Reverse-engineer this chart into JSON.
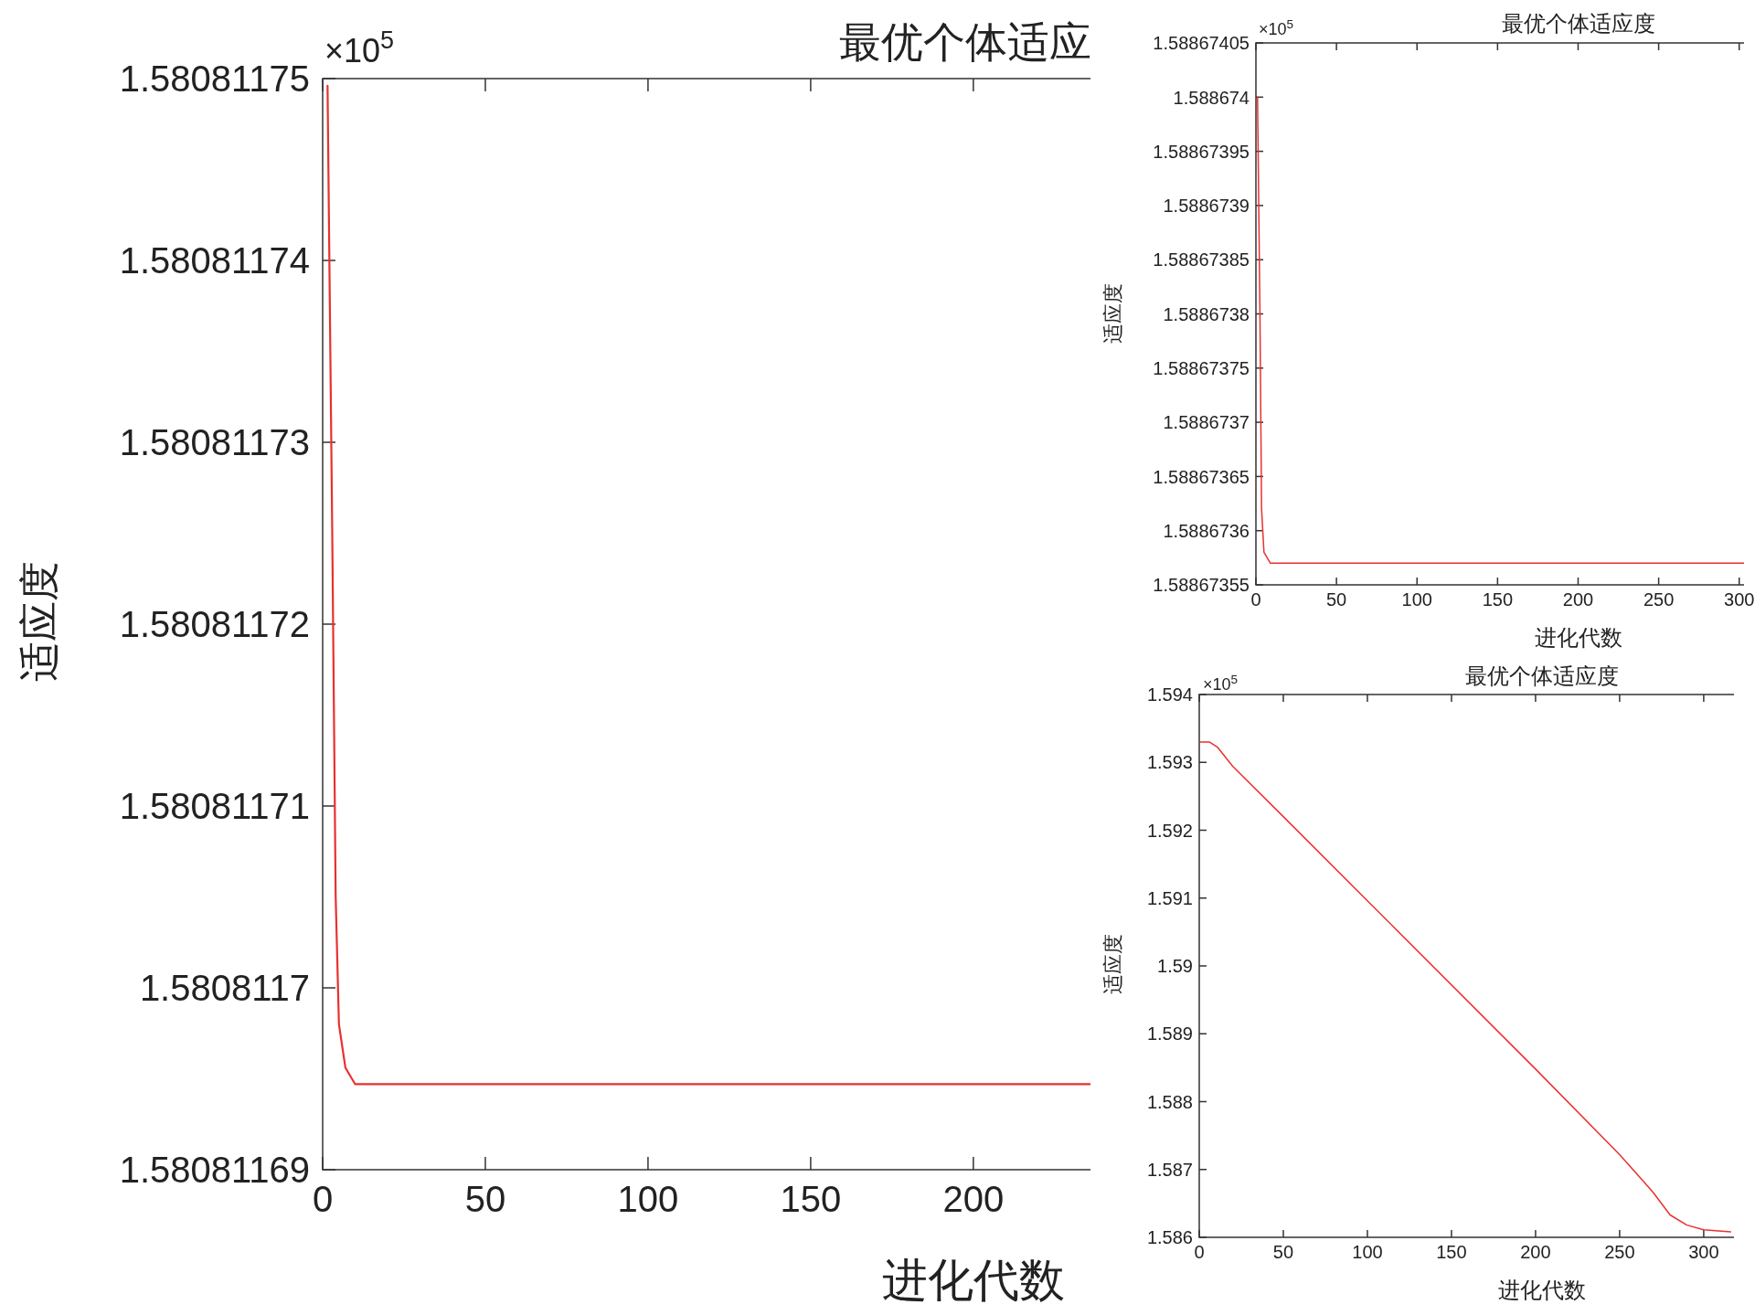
{
  "chart_data": [
    {
      "type": "line",
      "title": "最优个体适应",
      "xlabel": "进化代数",
      "ylabel": "适应度",
      "annotations": [
        "×10$^{5}$"
      ],
      "xlim": [
        0,
        236
      ],
      "xticks": [
        0,
        50,
        100,
        150,
        200
      ],
      "ylim": [
        1.58081169,
        1.58081175
      ],
      "yticks": [
        1.58081169,
        1.5808117,
        1.58081171,
        1.58081172,
        1.58081173,
        1.58081174,
        1.58081175
      ],
      "series": [
        {
          "color": "#e8312f",
          "x": [
            1.5,
            3,
            4,
            5,
            7,
            10,
            236
          ],
          "values": [
            1.5808117496,
            1.580811724,
            1.580811705,
            1.580811698,
            1.5808116956,
            1.5808116947,
            1.5808116947
          ]
        }
      ]
    },
    {
      "type": "line",
      "title": "最优个体适应度",
      "xlabel": "进化代数",
      "ylabel": "适应度",
      "annotations": [
        "×10$^{5}$"
      ],
      "xlim": [
        0,
        303
      ],
      "xticks": [
        0,
        50,
        100,
        150,
        200,
        250,
        300
      ],
      "ylim": [
        1.58867355,
        1.58867405
      ],
      "yticks": [
        1.58867355,
        1.5886736,
        1.58867365,
        1.5886737,
        1.58867375,
        1.5886738,
        1.58867385,
        1.5886739,
        1.58867395,
        1.588674,
        1.58867405
      ],
      "series": [
        {
          "color": "#e8312f",
          "x": [
            1,
            2.5,
            3.5,
            5,
            9,
            303
          ],
          "values": [
            1.588674,
            1.5886738,
            1.58867362,
            1.58867358,
            1.58867357,
            1.58867357
          ]
        }
      ]
    },
    {
      "type": "line",
      "title": "最优个体适应度",
      "xlabel": "进化代数",
      "ylabel": "适应度",
      "annotations": [
        "×10$^{5}$"
      ],
      "xlim": [
        0,
        318
      ],
      "xticks": [
        0,
        50,
        100,
        150,
        200,
        250,
        300
      ],
      "ylim": [
        1.586,
        1.594
      ],
      "yticks": [
        1.586,
        1.587,
        1.588,
        1.589,
        1.59,
        1.591,
        1.592,
        1.593,
        1.594
      ],
      "series": [
        {
          "color": "#e8312f",
          "x": [
            0,
            6,
            11,
            20,
            50,
            100,
            200,
            250,
            265,
            270,
            280,
            290,
            300,
            316
          ],
          "values": [
            1.5933,
            1.5933,
            1.59322,
            1.59294,
            1.5922,
            1.59096,
            1.58848,
            1.58722,
            1.5868,
            1.58666,
            1.58633,
            1.58618,
            1.58611,
            1.58608
          ]
        }
      ]
    }
  ]
}
